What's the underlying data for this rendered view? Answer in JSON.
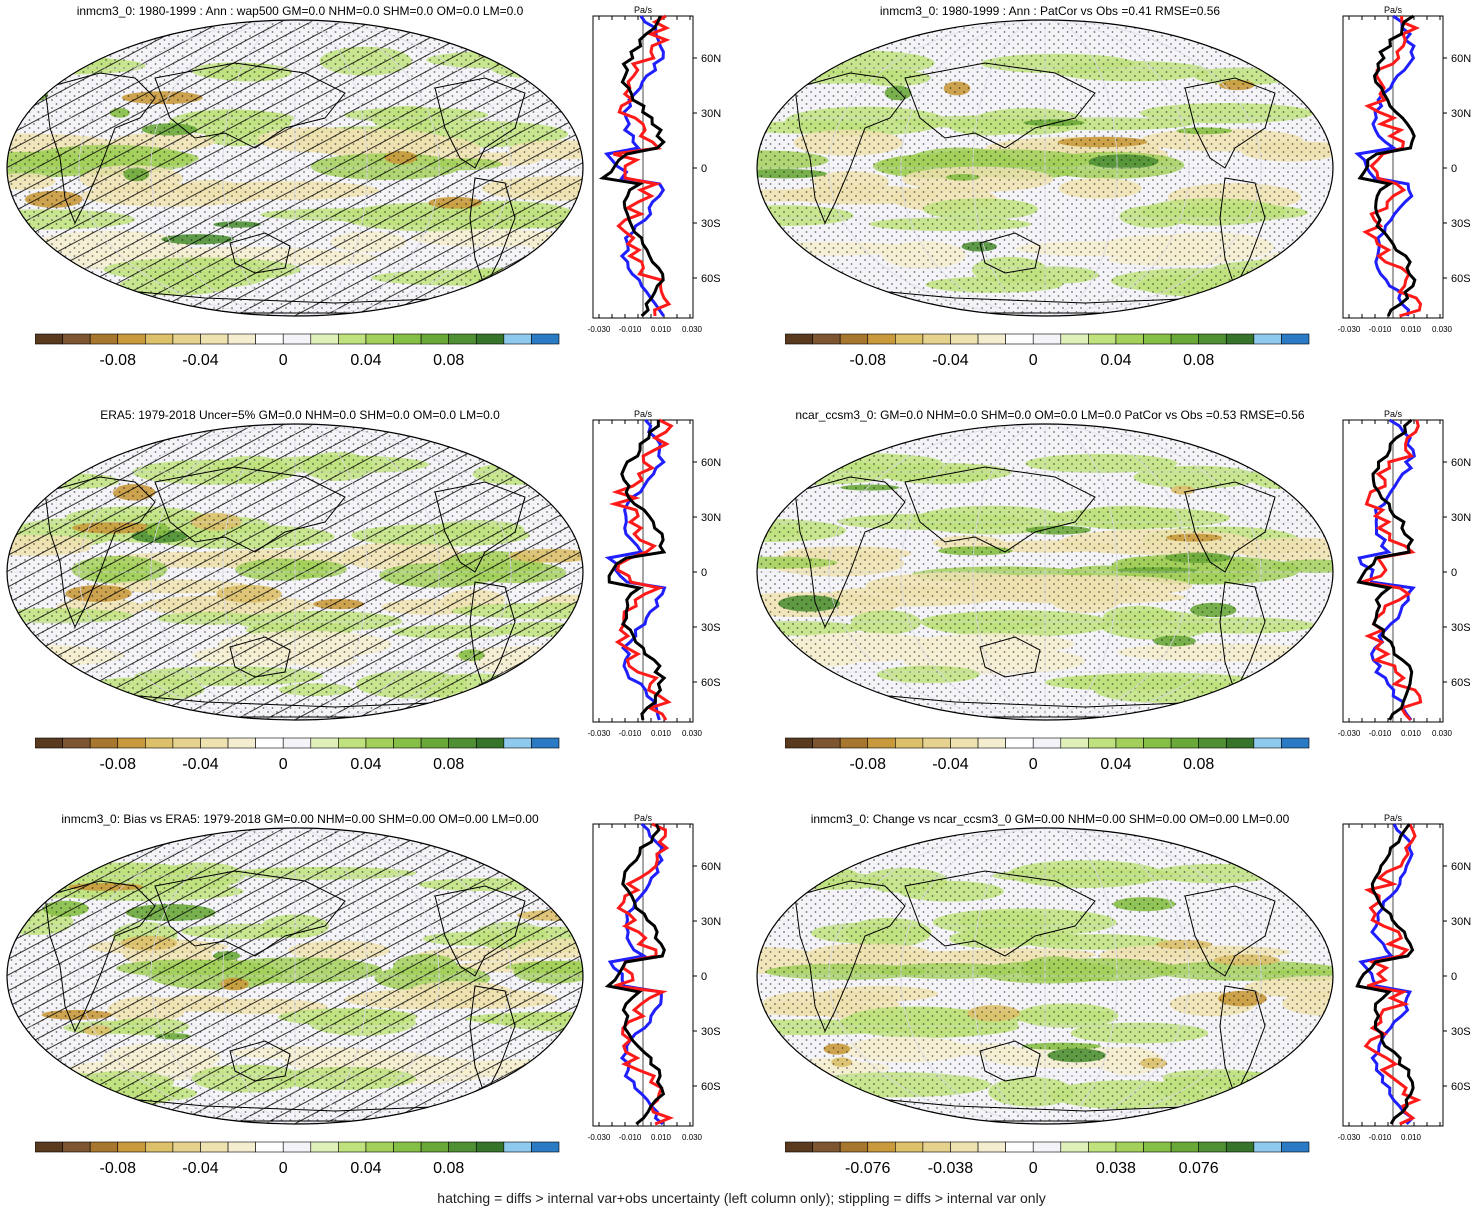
{
  "footer": "hatching = diffs > internal var+obs uncertainty (left column only); stippling = diffs > internal var only",
  "palette": [
    "#5a3a1e",
    "#7d5530",
    "#a8772f",
    "#c99a3c",
    "#dcc06a",
    "#e6d28f",
    "#eee2b0",
    "#f4edd0",
    "#ffffff",
    "#f4f4f8",
    "#dff0b8",
    "#bfe27e",
    "#a2d05a",
    "#86bf45",
    "#6aa83a",
    "#4f9035",
    "#36742c",
    "#8ec9ee",
    "#2b7bc4"
  ],
  "line_colors": {
    "model": "#1f1fff",
    "obs": "#ff1a1a",
    "diff": "#000000"
  },
  "panels": [
    {
      "title": "inmcm3_0: 1980-1999 : Ann : wap500 GM=0.0 NHM=0.0 SHM=0.0 OM=0.0 LM=0.0",
      "hatched": true,
      "colorbar_ticks": [
        "-0.08",
        "-0.04",
        "0",
        "0.04",
        "0.08"
      ],
      "zonal": {
        "units": "Pa/s",
        "lat_ticks": [
          "60N",
          "30N",
          "0",
          "30S",
          "60S"
        ],
        "x_ticks": [
          "-0.030",
          "-0.010",
          "0.010",
          "0.030"
        ]
      }
    },
    {
      "title": "inmcm3_0: 1980-1999 : Ann : PatCor vs Obs =0.41 RMSE=0.56",
      "hatched": false,
      "colorbar_ticks": [
        "-0.08",
        "-0.04",
        "0",
        "0.04",
        "0.08"
      ],
      "zonal": {
        "units": "Pa/s",
        "lat_ticks": [
          "60N",
          "30N",
          "0",
          "30S",
          "60S"
        ],
        "x_ticks": [
          "-0.030",
          "-0.010",
          "0.010",
          "0.030"
        ]
      }
    },
    {
      "title": "ERA5: 1979-2018 Uncer=5% GM=0.0 NHM=0.0 SHM=0.0 OM=0.0 LM=0.0",
      "hatched": true,
      "colorbar_ticks": [
        "-0.08",
        "-0.04",
        "0",
        "0.04",
        "0.08"
      ],
      "zonal": {
        "units": "Pa/s",
        "lat_ticks": [
          "60N",
          "30N",
          "0",
          "30S",
          "60S"
        ],
        "x_ticks": [
          "-0.030",
          "-0.010",
          "0.010",
          "0.030"
        ]
      }
    },
    {
      "title": "ncar_ccsm3_0: GM=0.0 NHM=0.0 SHM=0.0 OM=0.0 LM=0.0 PatCor vs Obs =0.53 RMSE=0.56",
      "hatched": false,
      "colorbar_ticks": [
        "-0.08",
        "-0.04",
        "0",
        "0.04",
        "0.08"
      ],
      "zonal": {
        "units": "Pa/s",
        "lat_ticks": [
          "60N",
          "30N",
          "0",
          "30S",
          "60S"
        ],
        "x_ticks": [
          "-0.030",
          "-0.010",
          "0.010",
          "0.030"
        ]
      }
    },
    {
      "title": "inmcm3_0: Bias vs ERA5: 1979-2018 GM=0.00 NHM=0.00 SHM=0.00 OM=0.00 LM=0.00",
      "hatched": true,
      "colorbar_ticks": [
        "-0.08",
        "-0.04",
        "0",
        "0.04",
        "0.08"
      ],
      "zonal": {
        "units": "Pa/s",
        "lat_ticks": [
          "60N",
          "30N",
          "0",
          "30S",
          "60S"
        ],
        "x_ticks": [
          "-0.030",
          "-0.010",
          "0.010",
          "0.030"
        ]
      }
    },
    {
      "title": "inmcm3_0: Change vs ncar_ccsm3_0 GM=0.00 NHM=0.00 SHM=0.00 OM=0.00 LM=0.00",
      "hatched": false,
      "colorbar_ticks": [
        "-0.076",
        "-0.038",
        "0",
        "0.038",
        "0.076"
      ],
      "zonal": {
        "units": "Pa/s",
        "lat_ticks": [
          "60N",
          "30N",
          "0",
          "30S",
          "60S"
        ],
        "x_ticks": [
          "-0.030",
          "-0.010",
          "0.010"
        ]
      }
    }
  ]
}
